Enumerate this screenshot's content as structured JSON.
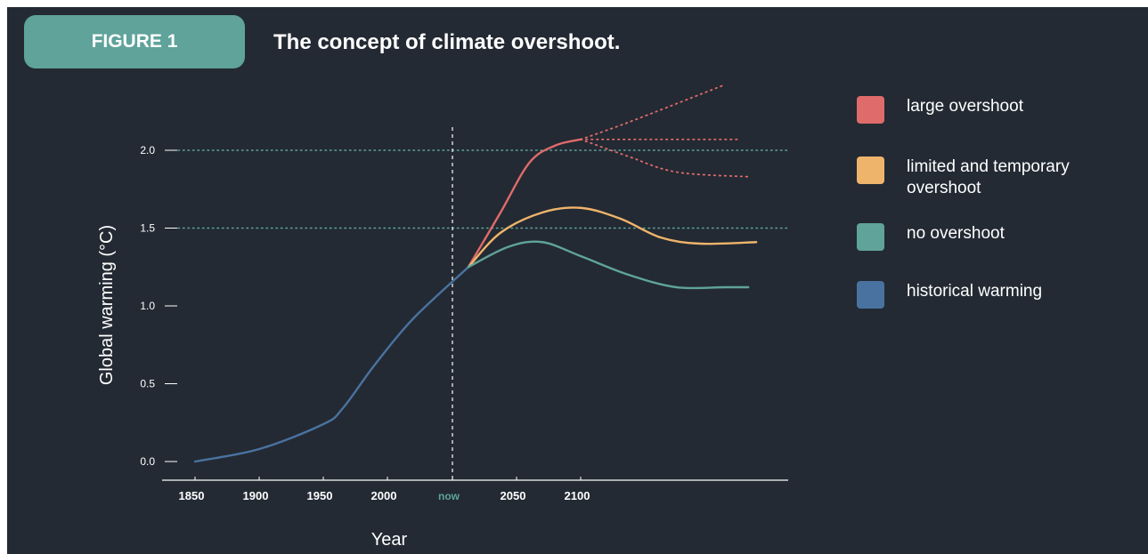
{
  "figure_label": "FIGURE 1",
  "title": "The concept of climate overshoot.",
  "colors": {
    "background": "#232a33",
    "badge": "#5fa39a",
    "large_overshoot": "#e06b6b",
    "limited_overshoot": "#efb46b",
    "no_overshoot": "#5fa39a",
    "historical": "#4a72a0",
    "threshold_line": "#5fa39a",
    "now_line": "#ffffff"
  },
  "legend": [
    {
      "label": "large overshoot",
      "color": "#e06b6b"
    },
    {
      "label": "limited and temporary overshoot",
      "color": "#efb46b"
    },
    {
      "label": "no overshoot",
      "color": "#5fa39a"
    },
    {
      "label": "historical warming",
      "color": "#4a72a0"
    }
  ],
  "chart_data": {
    "type": "line",
    "xlabel": "Year",
    "ylabel": "Global warming (°C)",
    "xlim": [
      1850,
      2270
    ],
    "ylim": [
      0.0,
      2.2
    ],
    "x_ticks": [
      "1850",
      "1900",
      "1950",
      "2000",
      "now",
      "2050",
      "2100"
    ],
    "x_tick_values": [
      1850,
      1900,
      1950,
      2000,
      2050,
      2090,
      2140
    ],
    "y_ticks": [
      "0.0",
      "0.5",
      "1.0",
      "1.5",
      "2.0"
    ],
    "y_tick_values": [
      0.0,
      0.5,
      1.0,
      1.5,
      2.0
    ],
    "now_value": 2050,
    "thresholds": [
      1.5,
      2.0
    ],
    "series": [
      {
        "name": "historical warming",
        "key": "historical",
        "style": "solid",
        "x": [
          1850,
          1900,
          1950,
          1965,
          1990,
          2020,
          2060
        ],
        "y": [
          0.0,
          0.08,
          0.24,
          0.34,
          0.62,
          0.92,
          1.25
        ]
      },
      {
        "name": "large overshoot",
        "key": "large_overshoot",
        "style": "solid",
        "x": [
          2060,
          2080,
          2100,
          2120,
          2140
        ],
        "y": [
          1.25,
          1.6,
          1.92,
          2.03,
          2.07
        ]
      },
      {
        "name": "large overshoot",
        "key": "large_overshoot",
        "style": "dotted",
        "x": [
          2140,
          2170,
          2230
        ],
        "y": [
          2.07,
          2.18,
          2.42
        ]
      },
      {
        "name": "large overshoot",
        "key": "large_overshoot",
        "style": "dotted",
        "x": [
          2140,
          2190,
          2240
        ],
        "y": [
          2.07,
          2.07,
          2.07
        ]
      },
      {
        "name": "large overshoot",
        "key": "large_overshoot",
        "style": "dotted",
        "x": [
          2140,
          2170,
          2200,
          2245
        ],
        "y": [
          2.07,
          1.96,
          1.86,
          1.83
        ]
      },
      {
        "name": "limited and temporary overshoot",
        "key": "limited_overshoot",
        "style": "solid",
        "x": [
          2060,
          2080,
          2110,
          2140,
          2165,
          2190,
          2215,
          2250
        ],
        "y": [
          1.25,
          1.47,
          1.6,
          1.63,
          1.56,
          1.44,
          1.4,
          1.41
        ]
      },
      {
        "name": "no overshoot",
        "key": "no_overshoot",
        "style": "solid",
        "x": [
          2060,
          2085,
          2110,
          2140,
          2170,
          2200,
          2230,
          2245
        ],
        "y": [
          1.25,
          1.38,
          1.41,
          1.32,
          1.2,
          1.12,
          1.12,
          1.12
        ]
      }
    ]
  }
}
